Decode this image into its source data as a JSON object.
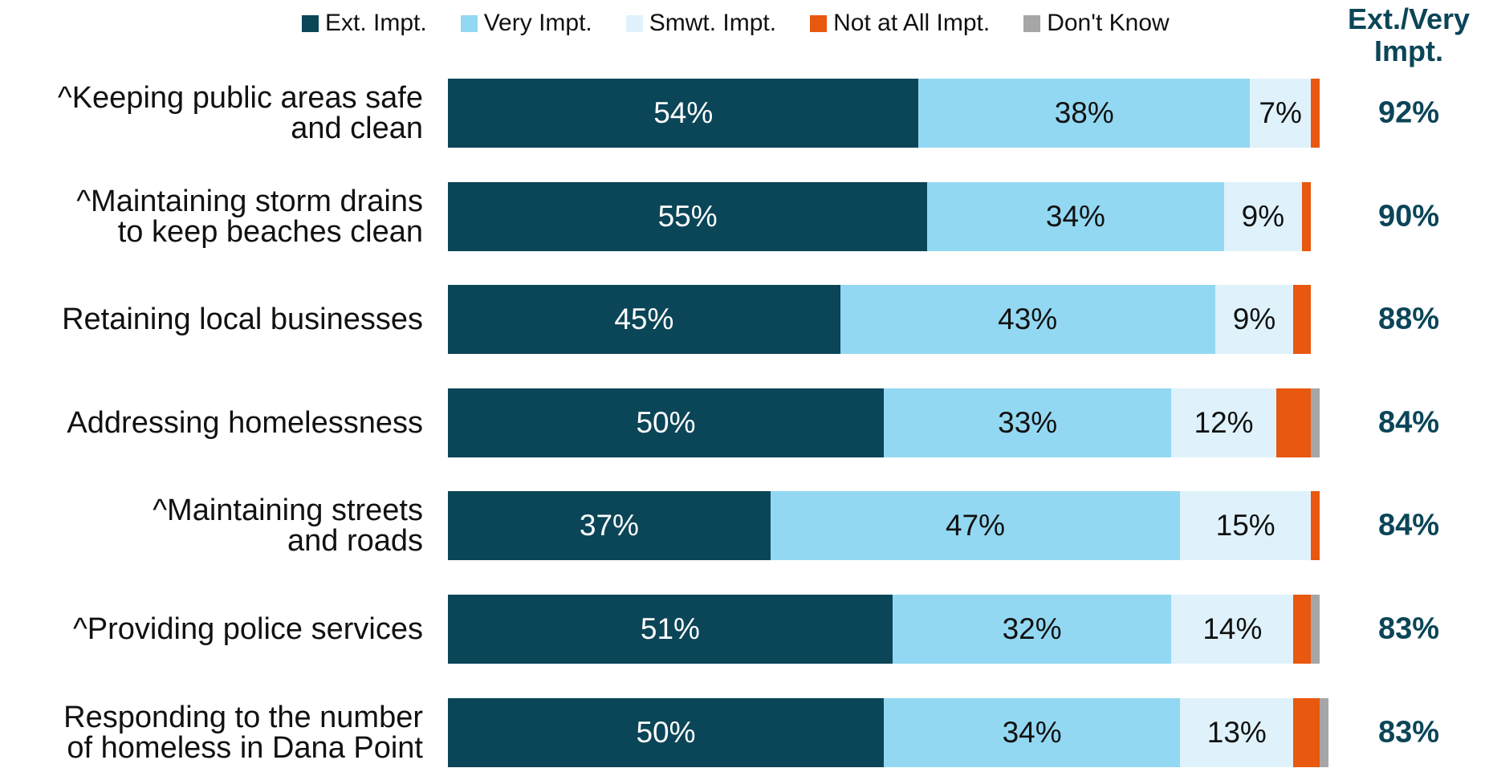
{
  "chart_data": {
    "type": "stacked-bar-horizontal",
    "categories": [
      "^Keeping public areas safe\nand clean",
      "^Maintaining storm drains\nto keep beaches clean",
      "Retaining local businesses",
      "Addressing homelessness",
      "^Maintaining streets\nand roads",
      "^Providing police services",
      "Responding to the number\nof homeless in Dana Point"
    ],
    "xlim": [
      0,
      100
    ],
    "series": [
      {
        "name": "Ext. Impt.",
        "color": "#0b4558",
        "values": [
          54,
          55,
          45,
          50,
          37,
          51,
          50
        ],
        "value_labels": [
          "54%",
          "55%",
          "45%",
          "50%",
          "37%",
          "51%",
          "50%"
        ]
      },
      {
        "name": "Very Impt.",
        "color": "#93d8f2",
        "values": [
          38,
          34,
          43,
          33,
          47,
          32,
          34
        ],
        "value_labels": [
          "38%",
          "34%",
          "43%",
          "33%",
          "47%",
          "32%",
          "34%"
        ]
      },
      {
        "name": "Smwt. Impt.",
        "color": "#dff2fb",
        "values": [
          7,
          9,
          9,
          12,
          15,
          14,
          13
        ],
        "value_labels": [
          "7%",
          "9%",
          "9%",
          "12%",
          "15%",
          "14%",
          "13%"
        ]
      },
      {
        "name": "Not at All Impt.",
        "color": "#e8580f",
        "values": [
          1,
          1,
          2,
          4,
          1,
          2,
          3
        ]
      },
      {
        "name": "Don't Know",
        "color": "#a6a6a6",
        "values": [
          0,
          0,
          0,
          1,
          0,
          1,
          1
        ]
      }
    ],
    "totals": {
      "title": "Ext./Very\nImpt.",
      "values": [
        92,
        90,
        88,
        84,
        84,
        83,
        83
      ],
      "value_labels": [
        "92%",
        "90%",
        "88%",
        "84%",
        "84%",
        "83%",
        "83%"
      ]
    }
  }
}
